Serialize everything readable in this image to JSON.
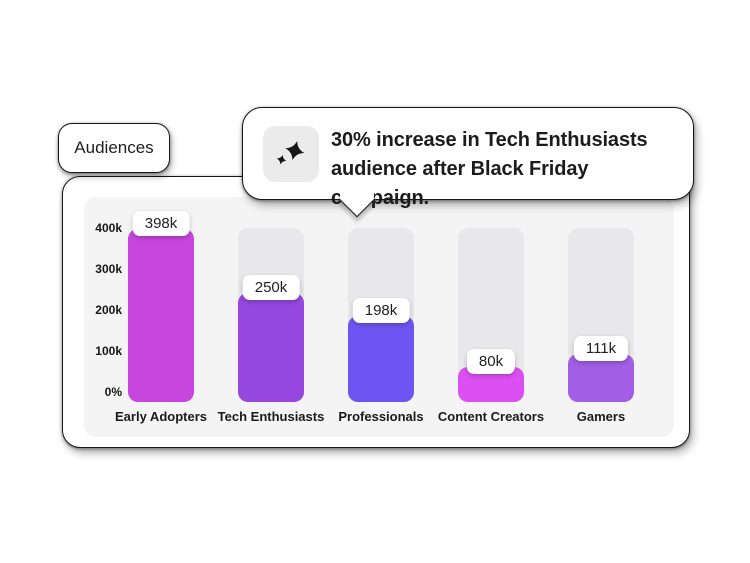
{
  "tab": {
    "label": "Audiences"
  },
  "tooltip": {
    "icon": "sparkle-icon",
    "line1": "30% increase in Tech Enthusiasts",
    "line2": "audience after Black Friday campaign."
  },
  "chart_data": {
    "type": "bar",
    "title": "Audiences",
    "categories": [
      "Early Adopters",
      "Tech Enthusiasts",
      "Professionals",
      "Content Creators",
      "Gamers"
    ],
    "values": [
      398000,
      250000,
      198000,
      80000,
      111000
    ],
    "value_labels": [
      "398k",
      "250k",
      "198k",
      "80k",
      "111k"
    ],
    "y_ticks": [
      "400k",
      "300k",
      "200k",
      "100k",
      "0%"
    ],
    "ylim": [
      0,
      400000
    ],
    "xlabel": "",
    "ylabel": "",
    "grid": false,
    "legend": "none",
    "bar_colors": [
      "#c746de",
      "#9547e0",
      "#6e55f3",
      "#dc4ff2",
      "#a25fe6"
    ],
    "track_color": "#e8e8ea",
    "panel_color": "#f4f4f5",
    "annotation": "30% increase in Tech Enthusiasts audience after Black Friday campaign."
  }
}
